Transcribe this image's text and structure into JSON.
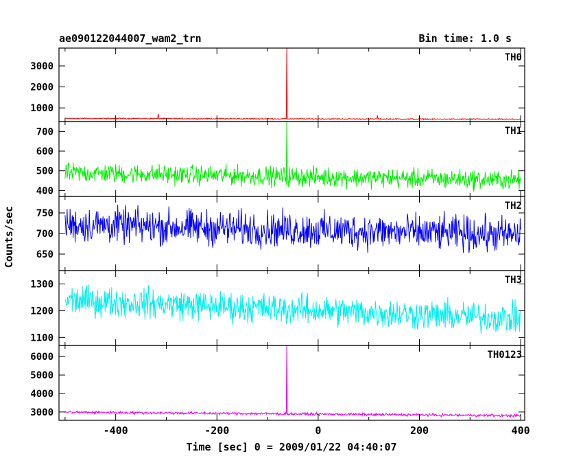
{
  "chart_data": {
    "type": "line",
    "title": "ae090122044007_wam2_trn",
    "subtitle": "Bin time: 1.0 s",
    "xlabel": "Time [sec] 0 = 2009/01/22 04:40:07",
    "ylabel": "Counts/sec",
    "xlim": [
      -512,
      408
    ],
    "x_ticks": [
      -400,
      -200,
      0,
      200,
      400
    ],
    "grid": false,
    "panels": [
      {
        "name": "TH0",
        "color": "#ff0000",
        "ylim": [
          350,
          3850
        ],
        "yticks": [
          1000,
          2000,
          3000
        ],
        "baseline": [
          [
            -500,
            500
          ],
          [
            400,
            460
          ]
        ],
        "noise": 25,
        "spikes": [
          {
            "x": -62,
            "y": 3850
          },
          {
            "x": -316,
            "y": 720
          },
          {
            "x": 117,
            "y": 640
          }
        ]
      },
      {
        "name": "TH1",
        "color": "#00ee00",
        "ylim": [
          370,
          750
        ],
        "yticks": [
          400,
          500,
          600,
          700
        ],
        "baseline": [
          [
            -500,
            490
          ],
          [
            400,
            452
          ]
        ],
        "noise": 48,
        "spikes": [
          {
            "x": -62,
            "y": 750
          }
        ]
      },
      {
        "name": "TH2",
        "color": "#0000ff",
        "ylim": [
          610,
          790
        ],
        "yticks": [
          650,
          700,
          750
        ],
        "baseline": [
          [
            -500,
            722
          ],
          [
            400,
            696
          ]
        ],
        "noise": 42,
        "spikes": []
      },
      {
        "name": "TH3",
        "color": "#00eeee",
        "ylim": [
          1070,
          1350
        ],
        "yticks": [
          1100,
          1200,
          1300
        ],
        "baseline": [
          [
            -500,
            1240
          ],
          [
            400,
            1170
          ]
        ],
        "noise": 55,
        "spikes": []
      },
      {
        "name": "TH0123",
        "color": "#ee00ee",
        "ylim": [
          2550,
          6600
        ],
        "yticks": [
          3000,
          4000,
          5000,
          6000
        ],
        "baseline": [
          [
            -500,
            2990
          ],
          [
            400,
            2800
          ]
        ],
        "noise": 70,
        "spikes": [
          {
            "x": -62,
            "y": 6600
          }
        ]
      }
    ]
  }
}
